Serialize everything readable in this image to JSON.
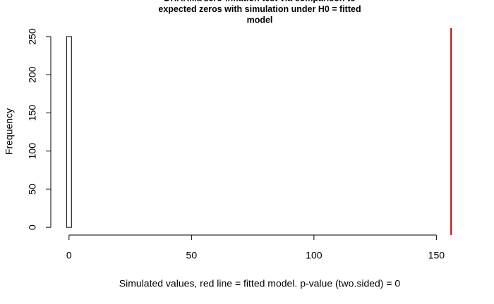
{
  "chart_data": {
    "type": "histogram",
    "title": [
      "DHARMa zero-inflation test via comparison to",
      "expected zeros with simulation under H0 = fitted",
      "model"
    ],
    "xlabel": "Simulated values, red line = fitted model. p-value (two.sided) = 0",
    "ylabel": "Frequency",
    "bins": [
      -1,
      1
    ],
    "values": [
      250
    ],
    "color": "#ffffff",
    "observed": {
      "value": 156,
      "color": "#cc0000"
    },
    "xlim": [
      -6,
      162
    ],
    "xticks": [
      0,
      50,
      100,
      150
    ],
    "ylim": [
      -10,
      261
    ],
    "yticks": [
      0,
      50,
      100,
      150,
      200,
      250
    ]
  }
}
